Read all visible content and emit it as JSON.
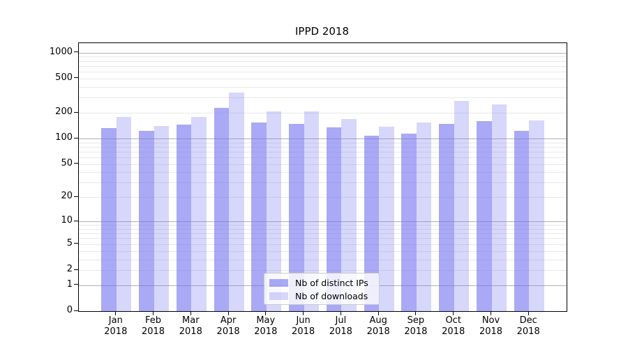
{
  "title": "IPPD 2018",
  "colors": {
    "background": "#ffffff",
    "axis": "#000000",
    "grid_major": "#b2b2b2",
    "grid_minor": "#e8e8e8",
    "bar_distinct_ips": "rgba(112,112,240,0.60)",
    "bar_downloads": "rgba(112,112,240,0.28)",
    "legend_border": "#cccccc",
    "legend_background": "rgba(255,255,255,0.8)"
  },
  "legend": {
    "items": [
      {
        "label": "Nb of distinct IPs"
      },
      {
        "label": "Nb of downloads"
      }
    ]
  },
  "chart_data": {
    "type": "bar",
    "title": "IPPD 2018",
    "xlabel": "",
    "ylabel": "",
    "yscale": "log1p",
    "ylim": [
      0,
      1290
    ],
    "yticks": [
      0,
      1,
      2,
      5,
      10,
      20,
      50,
      100,
      200,
      500,
      1000
    ],
    "grid": "horizontal major+minor",
    "legend_position": "inside lower-center",
    "categories": [
      "Jan 2018",
      "Feb 2018",
      "Mar 2018",
      "Apr 2018",
      "May 2018",
      "Jun 2018",
      "Jul 2018",
      "Aug 2018",
      "Sep 2018",
      "Oct 2018",
      "Nov 2018",
      "Dec 2018"
    ],
    "series": [
      {
        "name": "Nb of distinct IPs",
        "color": "rgba(112,112,240,0.60)",
        "values": [
          133,
          124,
          145,
          230,
          155,
          148,
          134,
          108,
          115,
          148,
          161,
          122
        ]
      },
      {
        "name": "Nb of downloads",
        "color": "rgba(112,112,240,0.28)",
        "values": [
          180,
          141,
          180,
          341,
          207,
          207,
          170,
          138,
          155,
          277,
          251,
          164
        ]
      }
    ]
  }
}
